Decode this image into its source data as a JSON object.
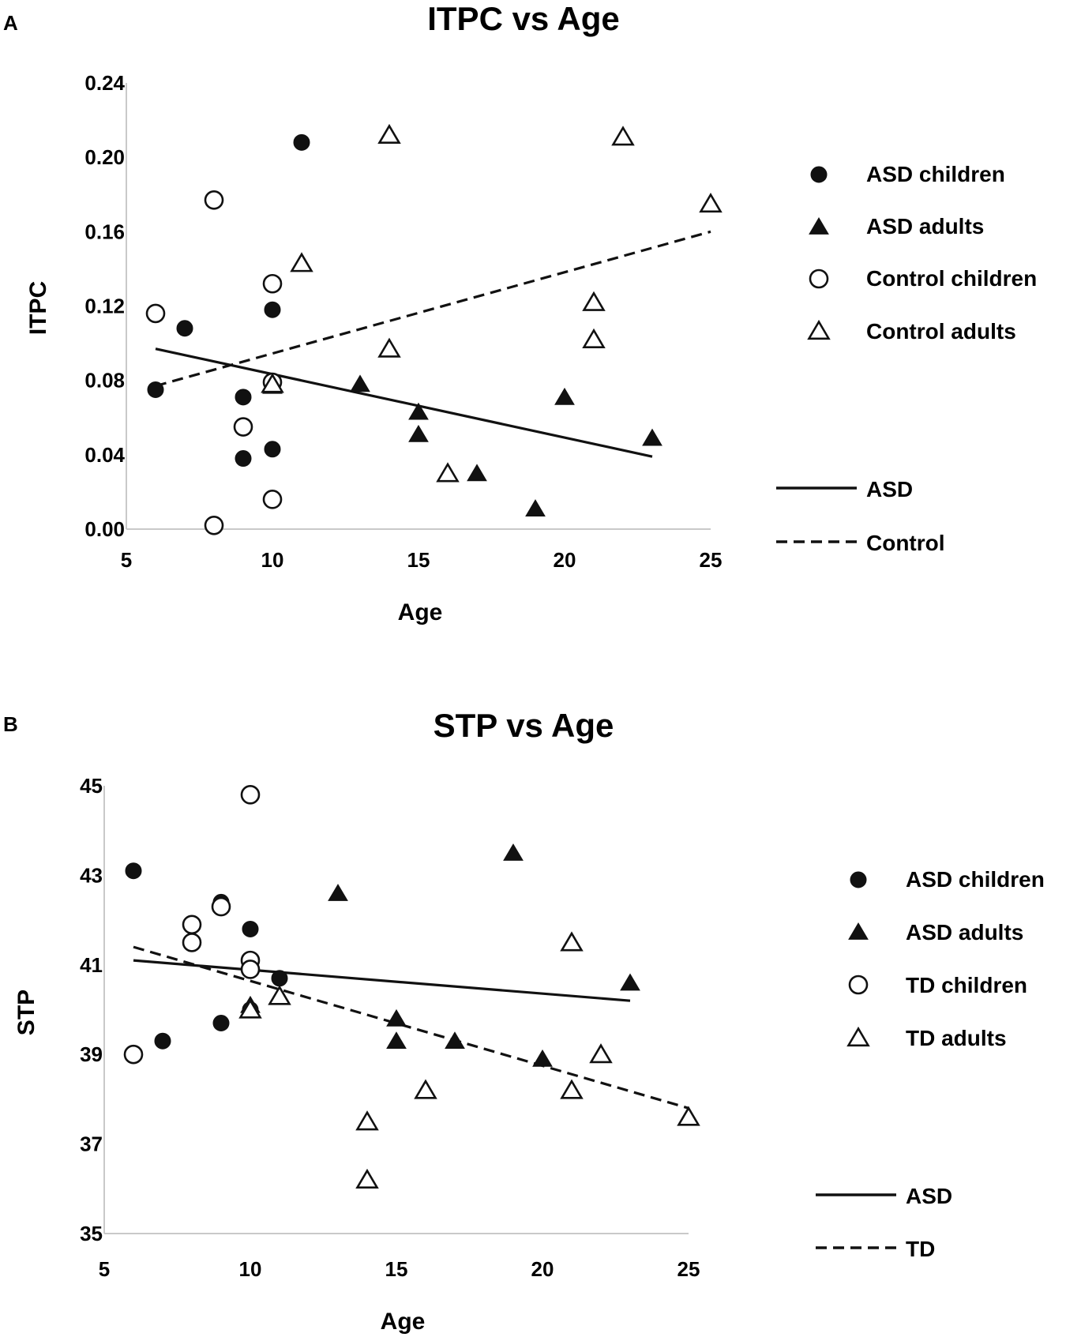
{
  "chart_data": [
    {
      "panel": "A",
      "type": "scatter",
      "title": "ITPC vs Age",
      "xlabel": "Age",
      "ylabel": "ITPC",
      "xlim": [
        5,
        25
      ],
      "ylim": [
        0,
        0.24
      ],
      "xticks": [
        "5",
        "10",
        "15",
        "20",
        "25"
      ],
      "yticks": [
        "0.00",
        "0.04",
        "0.08",
        "0.12",
        "0.16",
        "0.20",
        "0.24"
      ],
      "series": [
        {
          "name": "ASD children",
          "marker": "filled-circle",
          "x": [
            6,
            7,
            9,
            9,
            10,
            10,
            10,
            11
          ],
          "y": [
            0.075,
            0.108,
            0.071,
            0.038,
            0.043,
            0.118,
            0.079,
            0.208
          ]
        },
        {
          "name": "ASD adults",
          "marker": "filled-triangle",
          "x": [
            10,
            13,
            15,
            15,
            17,
            19,
            20,
            23
          ],
          "y": [
            0.077,
            0.078,
            0.063,
            0.051,
            0.03,
            0.011,
            0.071,
            0.049
          ]
        },
        {
          "name": "Control children",
          "marker": "open-circle",
          "x": [
            6,
            8,
            8,
            9,
            10,
            10,
            10
          ],
          "y": [
            0.116,
            0.177,
            0.002,
            0.055,
            0.132,
            0.079,
            0.016
          ]
        },
        {
          "name": "Control adults",
          "marker": "open-triangle",
          "x": [
            10,
            11,
            14,
            14,
            16,
            21,
            21,
            22,
            25
          ],
          "y": [
            0.078,
            0.143,
            0.212,
            0.097,
            0.03,
            0.122,
            0.102,
            0.211,
            0.175
          ]
        }
      ],
      "trendlines": [
        {
          "name": "ASD",
          "style": "solid",
          "x": [
            6,
            23
          ],
          "y": [
            0.097,
            0.039
          ]
        },
        {
          "name": "Control",
          "style": "dashed",
          "x": [
            6,
            25
          ],
          "y": [
            0.077,
            0.16
          ]
        }
      ]
    },
    {
      "panel": "B",
      "type": "scatter",
      "title": "STP vs Age",
      "xlabel": "Age",
      "ylabel": "STP",
      "xlim": [
        5,
        25
      ],
      "ylim": [
        35,
        45
      ],
      "xticks": [
        "5",
        "10",
        "15",
        "20",
        "25"
      ],
      "yticks": [
        "35",
        "37",
        "39",
        "41",
        "43",
        "45"
      ],
      "series": [
        {
          "name": "ASD children",
          "marker": "filled-circle",
          "x": [
            6,
            7,
            9,
            9,
            10,
            10,
            11
          ],
          "y": [
            43.1,
            39.3,
            39.7,
            42.4,
            41.8,
            40.0,
            40.7
          ]
        },
        {
          "name": "ASD adults",
          "marker": "filled-triangle",
          "x": [
            10,
            13,
            15,
            15,
            17,
            19,
            20,
            23
          ],
          "y": [
            40.1,
            42.6,
            39.8,
            39.3,
            39.3,
            43.5,
            38.9,
            40.6
          ]
        },
        {
          "name": "TD children",
          "marker": "open-circle",
          "x": [
            6,
            8,
            8,
            9,
            10,
            10,
            10
          ],
          "y": [
            39.0,
            41.9,
            41.5,
            42.3,
            44.8,
            41.1,
            40.9
          ]
        },
        {
          "name": "TD adults",
          "marker": "open-triangle",
          "x": [
            10,
            11,
            14,
            14,
            16,
            21,
            21,
            22,
            25
          ],
          "y": [
            40.0,
            40.3,
            37.5,
            36.2,
            38.2,
            41.5,
            38.2,
            39.0,
            37.6
          ]
        }
      ],
      "trendlines": [
        {
          "name": "ASD",
          "style": "solid",
          "x": [
            6,
            23
          ],
          "y": [
            41.1,
            40.2
          ]
        },
        {
          "name": "TD",
          "style": "dashed",
          "x": [
            6,
            25
          ],
          "y": [
            41.4,
            37.8
          ]
        }
      ]
    }
  ]
}
